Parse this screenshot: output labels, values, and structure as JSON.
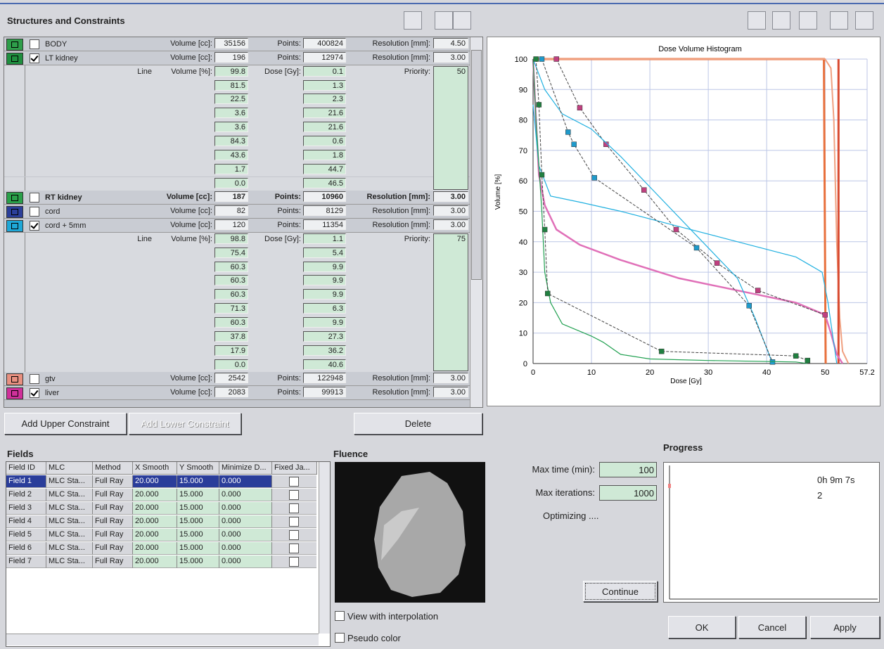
{
  "header": {
    "title": "Structures and Constraints"
  },
  "structures": [
    {
      "name": "BODY",
      "color": "#2e9e4a",
      "checked": false,
      "volume_label": "Volume [cc]:",
      "volume": "35156",
      "points_label": "Points:",
      "points": "400824",
      "resolution_label": "Resolution [mm]:",
      "resolution": "4.50"
    },
    {
      "name": "LT kidney",
      "color": "#1f8f3f",
      "checked": true,
      "volume_label": "Volume [cc]:",
      "volume": "196",
      "points_label": "Points:",
      "points": "12974",
      "resolution_label": "Resolution [mm]:",
      "resolution": "3.00",
      "constraints": {
        "line_label": "Line",
        "volume_label": "Volume [%]:",
        "dose_label": "Dose [Gy]:",
        "priority_label": "Priority:",
        "priority": "50",
        "volumes": [
          "99.8",
          "81.5",
          "22.5",
          "3.6",
          "3.6",
          "84.3",
          "43.6",
          "1.7",
          "0.0"
        ],
        "doses": [
          "0.1",
          "1.3",
          "2.3",
          "21.6",
          "21.6",
          "0.6",
          "1.8",
          "44.7",
          "46.5"
        ]
      }
    },
    {
      "name": "RT kidney",
      "color": "#2aa04a",
      "checked": false,
      "bold": true,
      "volume_label": "Volume [cc]:",
      "volume": "187",
      "points_label": "Points:",
      "points": "10960",
      "resolution_label": "Resolution [mm]:",
      "resolution": "3.00"
    },
    {
      "name": "cord",
      "color": "#2b3f9a",
      "checked": false,
      "volume_label": "Volume [cc]:",
      "volume": "82",
      "points_label": "Points:",
      "points": "8129",
      "resolution_label": "Resolution [mm]:",
      "resolution": "3.00"
    },
    {
      "name": "cord + 5mm",
      "color": "#1fa8d8",
      "checked": true,
      "volume_label": "Volume [cc]:",
      "volume": "120",
      "points_label": "Points:",
      "points": "11354",
      "resolution_label": "Resolution [mm]:",
      "resolution": "3.00",
      "constraints": {
        "line_label": "Line",
        "volume_label": "Volume [%]:",
        "dose_label": "Dose [Gy]:",
        "priority_label": "Priority:",
        "priority": "75",
        "volumes": [
          "98.8",
          "75.4",
          "60.3",
          "60.3",
          "60.3",
          "71.3",
          "60.3",
          "37.8",
          "17.9",
          "0.0"
        ],
        "doses": [
          "1.1",
          "5.4",
          "9.9",
          "9.9",
          "9.9",
          "6.3",
          "9.9",
          "27.3",
          "36.2",
          "40.6"
        ]
      }
    },
    {
      "name": "gtv",
      "color": "#e89080",
      "checked": false,
      "volume_label": "Volume [cc]:",
      "volume": "2542",
      "points_label": "Points:",
      "points": "122948",
      "resolution_label": "Resolution [mm]:",
      "resolution": "3.00"
    },
    {
      "name": "liver",
      "color": "#d0309a",
      "checked": true,
      "volume_label": "Volume [cc]:",
      "volume": "2083",
      "points_label": "Points:",
      "points": "99913",
      "resolution_label": "Resolution [mm]:",
      "resolution": "3.00"
    }
  ],
  "buttons": {
    "add_upper": "Add Upper Constraint",
    "add_lower": "Add Lower Constraint",
    "delete": "Delete",
    "ok": "OK",
    "cancel": "Cancel",
    "apply": "Apply"
  },
  "chart_data": {
    "type": "line",
    "title": "Dose Volume Histogram",
    "x_label": "Dose [Gy]",
    "y_label": "Volume [%]",
    "xlim": [
      0,
      57.2
    ],
    "ylim": [
      0,
      100
    ],
    "xticks": [
      0,
      10,
      20,
      30,
      40,
      50,
      57.2
    ],
    "yticks": [
      0,
      10,
      20,
      30,
      40,
      50,
      60,
      70,
      80,
      90,
      100
    ],
    "grid": true,
    "series": [
      {
        "color": "#e8703c",
        "width": 3,
        "x": [
          0,
          49.8,
          50.1
        ],
        "values": [
          100,
          100,
          0
        ]
      },
      {
        "color": "#f0a080",
        "width": 2,
        "x": [
          0,
          50,
          51,
          51.5,
          52,
          52.5,
          53,
          54
        ],
        "values": [
          100,
          100,
          97,
          80,
          40,
          15,
          4,
          0
        ]
      },
      {
        "color": "#d84a30",
        "width": 3,
        "x": [
          52.3,
          52.3
        ],
        "values": [
          100,
          0
        ]
      },
      {
        "color": "#e070b8",
        "width": 2.5,
        "x": [
          0,
          0.5,
          1,
          2,
          4,
          8,
          15,
          25,
          35,
          45,
          50,
          51,
          52,
          53
        ],
        "values": [
          100,
          80,
          62,
          52,
          44,
          39,
          34,
          28,
          24,
          20,
          16,
          10,
          3,
          0
        ]
      },
      {
        "color": "#c04080",
        "width": 1,
        "markers": true,
        "x": [
          4,
          8,
          12.5,
          19,
          24.5,
          31.5,
          38.5,
          50
        ],
        "values": [
          100,
          84,
          72,
          57,
          44,
          33,
          24,
          16
        ]
      },
      {
        "color": "#20b0e0",
        "width": 1.2,
        "x": [
          0,
          2,
          5,
          10,
          15,
          20,
          30,
          35,
          38,
          40,
          41
        ],
        "values": [
          100,
          90,
          82,
          77,
          68,
          58,
          38,
          28,
          15,
          5,
          0
        ]
      },
      {
        "color": "#20b0e0",
        "width": 1.2,
        "x": [
          0,
          1,
          3,
          8,
          15,
          25,
          35,
          45,
          49.5,
          50.5,
          52
        ],
        "values": [
          85,
          65,
          55,
          53,
          50,
          45,
          40,
          35,
          30,
          20,
          0
        ]
      },
      {
        "color": "#1f9acb",
        "width": 1,
        "markers": true,
        "x": [
          1.5,
          6,
          7,
          10.5,
          28,
          37,
          41
        ],
        "values": [
          100,
          76,
          72,
          61,
          38,
          19,
          0.5
        ]
      },
      {
        "color": "#20a050",
        "width": 1.2,
        "x": [
          0,
          0.5,
          1.5,
          2,
          3,
          5,
          10,
          12,
          15,
          20,
          30,
          45,
          47
        ],
        "values": [
          100,
          80,
          50,
          30,
          20,
          13,
          9,
          7,
          3,
          1.5,
          1,
          0.5,
          0
        ]
      },
      {
        "color": "#208040",
        "width": 1,
        "markers": true,
        "x": [
          0.5,
          1,
          1.5,
          2,
          2.5,
          22,
          45,
          47
        ],
        "values": [
          100,
          85,
          62,
          44,
          23,
          4,
          2.5,
          1
        ]
      }
    ]
  },
  "fields": {
    "title": "Fields",
    "columns": [
      "Field ID",
      "MLC",
      "Method",
      "X Smooth",
      "Y Smooth",
      "Minimize D...",
      "Fixed Ja..."
    ],
    "selected_row": 0,
    "rows": [
      [
        "Field 1",
        "MLC Sta...",
        "Full Ray",
        "20.000",
        "15.000",
        "0.000"
      ],
      [
        "Field 2",
        "MLC Sta...",
        "Full Ray",
        "20.000",
        "15.000",
        "0.000"
      ],
      [
        "Field 3",
        "MLC Sta...",
        "Full Ray",
        "20.000",
        "15.000",
        "0.000"
      ],
      [
        "Field 4",
        "MLC Sta...",
        "Full Ray",
        "20.000",
        "15.000",
        "0.000"
      ],
      [
        "Field 5",
        "MLC Sta...",
        "Full Ray",
        "20.000",
        "15.000",
        "0.000"
      ],
      [
        "Field 6",
        "MLC Sta...",
        "Full Ray",
        "20.000",
        "15.000",
        "0.000"
      ],
      [
        "Field 7",
        "MLC Sta...",
        "Full Ray",
        "20.000",
        "15.000",
        "0.000"
      ]
    ],
    "fixed_jaws": [
      false,
      false,
      false,
      false,
      false,
      false,
      false
    ]
  },
  "fluence": {
    "title": "Fluence",
    "interpolation": "View with interpolation",
    "pseudo_color": "Pseudo color"
  },
  "progress": {
    "title": "Progress",
    "max_time_label": "Max time (min):",
    "max_time": "100",
    "max_iterations_label": "Max iterations:",
    "max_iterations": "1000",
    "status": "Optimizing ....",
    "elapsed": "0h 9m 7s",
    "iteration": "2",
    "continue": "Continue"
  }
}
